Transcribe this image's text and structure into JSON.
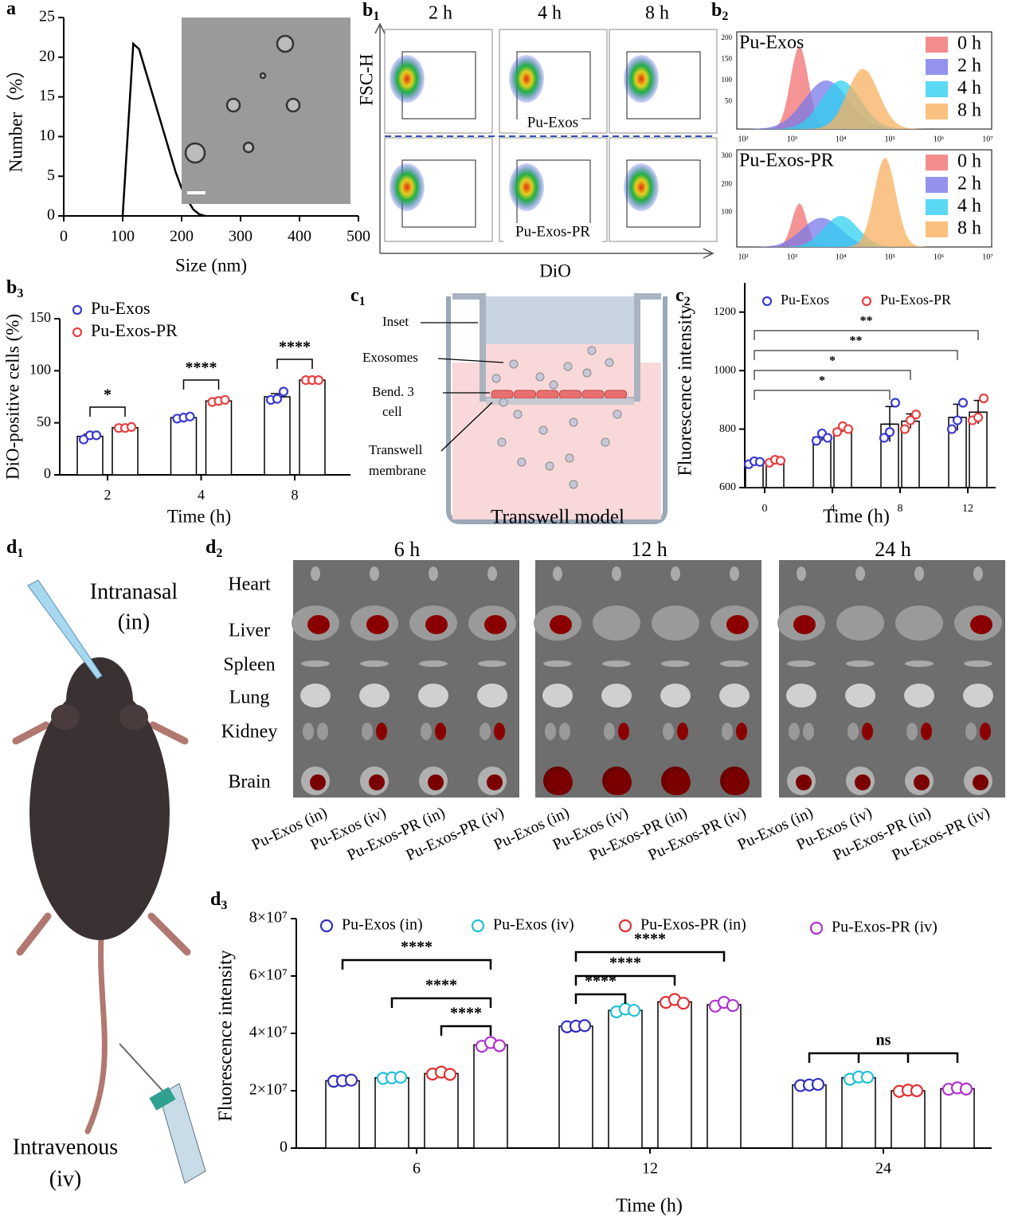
{
  "chart_data": [
    {
      "type": "line",
      "xlabel": "Size (nm)",
      "ylabel": "Number（%）",
      "color": "#000000",
      "x": [
        100,
        110,
        118,
        128,
        140,
        150,
        160,
        170,
        180,
        190,
        200,
        210,
        220,
        230,
        240
      ],
      "values": [
        0,
        12,
        21.7,
        21,
        18,
        15.5,
        13,
        10.5,
        8,
        5.5,
        3.5,
        2,
        0.8,
        0.2,
        0
      ],
      "xlim": [
        0,
        500
      ],
      "xticks": [
        0,
        100,
        200,
        300,
        400,
        500
      ],
      "ylim": [
        0,
        25
      ],
      "yticks": [
        0,
        5,
        10,
        15,
        20,
        25
      ]
    },
    {
      "type": "bar",
      "xlabel": "Time (h)",
      "ylabel": "DiO-positive cells (%)",
      "categories": [
        "2",
        "4",
        "8"
      ],
      "series": [
        {
          "name": "Pu-Exos",
          "color": "#3a3ad0",
          "values": [
            37,
            55,
            75
          ],
          "errors": [
            2,
            1,
            3
          ],
          "points": [
            [
              34,
              38,
              38
            ],
            [
              54,
              55,
              56
            ],
            [
              72,
              73,
              80
            ]
          ]
        },
        {
          "name": "Pu-Exos-PR",
          "color": "#e84040",
          "values": [
            45.3,
            71,
            91
          ],
          "errors": [
            0.5,
            1,
            0.3
          ],
          "points": [
            [
              45,
              45,
              46
            ],
            [
              70,
              71,
              72
            ],
            [
              91,
              91,
              91
            ]
          ]
        }
      ],
      "ylim": [
        0,
        150
      ],
      "yticks": [
        0,
        50,
        100,
        150
      ],
      "annotations": [
        "*",
        "****",
        "****"
      ]
    },
    {
      "type": "bar",
      "xlabel": "Time (h)",
      "ylabel": "Fluorescence intensity",
      "categories": [
        "0",
        "4",
        "8",
        "12"
      ],
      "series": [
        {
          "name": "Pu-Exos",
          "color": "#3a3ad0",
          "values": [
            686,
            772,
            817,
            840
          ],
          "errors": [
            5,
            12,
            60,
            45
          ],
          "points": [
            [
              680,
              690,
              688
            ],
            [
              760,
              785,
              770
            ],
            [
              770,
              790,
              890
            ],
            [
              800,
              830,
              890
            ]
          ]
        },
        {
          "name": "Pu-Exos-PR",
          "color": "#e84040",
          "values": [
            691,
            800,
            827,
            858
          ],
          "errors": [
            5,
            10,
            25,
            40
          ],
          "points": [
            [
              685,
              695,
              692
            ],
            [
              790,
              810,
              800
            ],
            [
              800,
              830,
              850
            ],
            [
              830,
              840,
              905
            ]
          ]
        }
      ],
      "ylim": [
        600,
        1300
      ],
      "yticks": [
        600,
        800,
        1000,
        1200
      ],
      "annotations": [
        "**",
        "**",
        "*",
        "*"
      ]
    },
    {
      "type": "bar",
      "xlabel": "Time (h)",
      "ylabel": "Fluorescence intensity",
      "categories": [
        "6",
        "12",
        "24"
      ],
      "series": [
        {
          "name": "Pu-Exos (in)",
          "color": "#3030c0",
          "values": [
            23500000,
            42500000,
            22000000
          ],
          "errors": [
            200000,
            300000,
            200000
          ],
          "points": [
            [
              23300000,
              23500000,
              23700000
            ],
            [
              42300000,
              42500000,
              42700000
            ],
            [
              21800000,
              22000000,
              22200000
            ]
          ]
        },
        {
          "name": "Pu-Exos (iv)",
          "color": "#20c0d8",
          "values": [
            24500000,
            48000000,
            24500000
          ],
          "errors": [
            200000,
            800000,
            400000
          ],
          "points": [
            [
              24300000,
              24500000,
              24700000
            ],
            [
              47500000,
              48500000,
              48000000
            ],
            [
              24000000,
              24800000,
              24700000
            ]
          ]
        },
        {
          "name": "Pu-Exos-PR (in)",
          "color": "#e03030",
          "values": [
            26000000,
            51000000,
            20000000
          ],
          "errors": [
            300000,
            500000,
            200000
          ],
          "points": [
            [
              25800000,
              26500000,
              25700000
            ],
            [
              50800000,
              51800000,
              50500000
            ],
            [
              19800000,
              20200000,
              20000000
            ]
          ]
        },
        {
          "name": "Pu-Exos-PR (iv)",
          "color": "#b030d0",
          "values": [
            36000000,
            50000000,
            20700000
          ],
          "errors": [
            500000,
            600000,
            200000
          ],
          "points": [
            [
              35500000,
              36800000,
              35700000
            ],
            [
              49500000,
              50800000,
              49700000
            ],
            [
              20500000,
              21000000,
              20600000
            ]
          ]
        }
      ],
      "ylim": [
        0,
        80000000
      ],
      "yticks": [
        0,
        {
          "value": 20000000,
          "label": "2×10⁷"
        },
        {
          "value": 40000000,
          "label": "4×10⁷"
        },
        {
          "value": 60000000,
          "label": "6×10⁷"
        },
        {
          "value": 80000000,
          "label": "8×10⁷"
        }
      ],
      "annotations": [
        "****",
        "****",
        "****",
        "****",
        "****",
        "****",
        "ns"
      ]
    }
  ],
  "panel_labels": [
    {
      "text": "a"
    },
    {
      "text": "b",
      "sub": "1"
    },
    {
      "text": "b",
      "sub": "2"
    },
    {
      "text": "b",
      "sub": "3"
    },
    {
      "text": "c",
      "sub": "1"
    },
    {
      "text": "c",
      "sub": "2"
    },
    {
      "text": "d",
      "sub": "1"
    },
    {
      "text": "d",
      "sub": "2"
    },
    {
      "text": "d",
      "sub": "3"
    }
  ],
  "b1": {
    "times": [
      "2 h",
      "4 h",
      "8 h"
    ],
    "ylabel": "FSC-H",
    "xlabel": "DiO",
    "rows": [
      "Pu-Exos",
      "Pu-Exos-PR"
    ]
  },
  "b2": {
    "panels": [
      {
        "title": "Pu-Exos",
        "yticks": [
          "200",
          "150",
          "100",
          "50"
        ]
      },
      {
        "title": "Pu-Exos-PR",
        "yticks": [
          "300",
          "200",
          "100"
        ]
      }
    ],
    "legend": [
      "0 h",
      "2 h",
      "4 h",
      "8 h"
    ],
    "legend_colors": [
      "#f07070",
      "#7878e8",
      "#30d0f0",
      "#f8b060"
    ],
    "xticks": [
      "10²",
      "10³",
      "10⁴",
      "10⁵",
      "10⁶",
      "10⁷"
    ]
  },
  "c1": {
    "labels": [
      "Inset",
      "Exosomes",
      "Bend. 3",
      "cell",
      "Transwell",
      "membrane"
    ],
    "caption": "Transwell model"
  },
  "d1": {
    "top": [
      "Intranasal",
      "(in)"
    ],
    "bottom": [
      "Intravenous",
      "(iv)"
    ]
  },
  "d2": {
    "times": [
      "6 h",
      "12 h",
      "24 h"
    ],
    "organs": [
      "Heart",
      "Liver",
      "Spleen",
      "Lung",
      "Kidney",
      "Brain"
    ],
    "groups": [
      "Pu-Exos (in)",
      "Pu-Exos (iv)",
      "Pu-Exos-PR (in)",
      "Pu-Exos-PR (iv)"
    ]
  }
}
